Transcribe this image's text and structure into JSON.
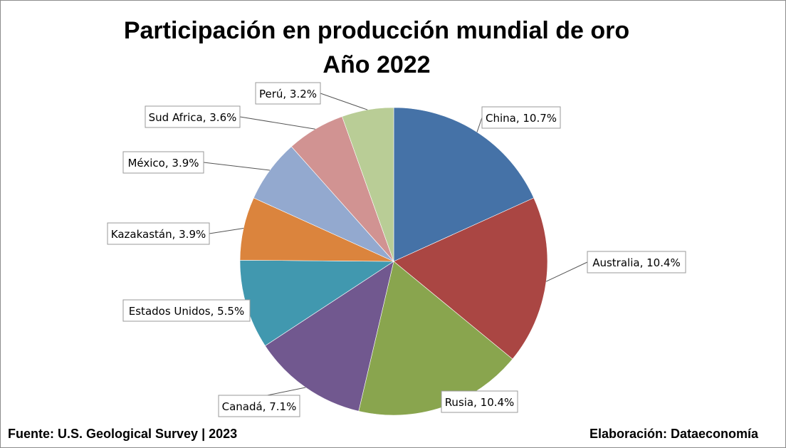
{
  "chart_data": {
    "type": "pie",
    "title": "Participación en producción mundial de oro",
    "subtitle": "Año 2022",
    "slices": [
      {
        "label": "China",
        "value": 10.7,
        "display": "China, 10.7%",
        "color": "#4572a7"
      },
      {
        "label": "Australia",
        "value": 10.4,
        "display": "Australia, 10.4%",
        "color": "#aa4643"
      },
      {
        "label": "Rusia",
        "value": 10.4,
        "display": "Rusia, 10.4%",
        "color": "#89a54e"
      },
      {
        "label": "Canadá",
        "value": 7.1,
        "display": "Canadá, 7.1%",
        "color": "#71588f"
      },
      {
        "label": "Estados Unidos",
        "value": 5.5,
        "display": "Estados Unidos, 5.5%",
        "color": "#4198af"
      },
      {
        "label": "Kazakastán",
        "value": 3.9,
        "display": "Kazakastán, 3.9%",
        "color": "#db843d"
      },
      {
        "label": "México",
        "value": 3.9,
        "display": "México, 3.9%",
        "color": "#93a9cf"
      },
      {
        "label": "Sud Africa",
        "value": 3.6,
        "display": "Sud Africa, 3.6%",
        "color": "#d19392"
      },
      {
        "label": "Perú",
        "value": 3.2,
        "display": "Perú, 3.2%",
        "color": "#b9cd96"
      }
    ]
  },
  "footer": {
    "source": "Fuente: U.S. Geological Survey | 2023",
    "credit": "Elaboración: Dataeconomía"
  }
}
